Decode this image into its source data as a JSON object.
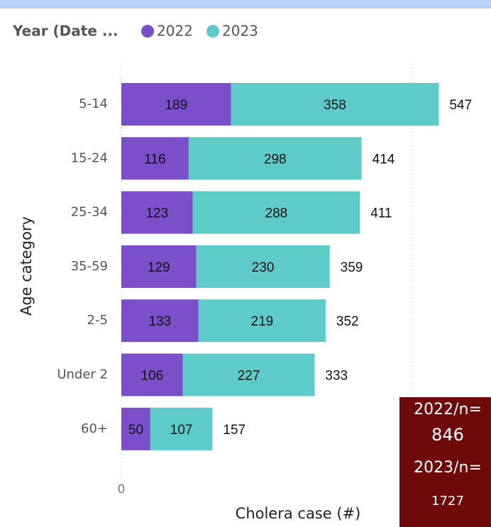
{
  "chart_data": {
    "type": "stacked-bar-horizontal",
    "legend_title": "Year (Date ...",
    "categories": [
      "5-14",
      "15-24",
      "25-34",
      "35-59",
      "2-5",
      "Under 2",
      "60+"
    ],
    "series": [
      {
        "name": "2022",
        "color": "#7b4fca",
        "values": [
          189,
          116,
          123,
          129,
          133,
          106,
          50
        ]
      },
      {
        "name": "2023",
        "color": "#5ecbc8",
        "values": [
          358,
          298,
          288,
          230,
          219,
          227,
          107
        ]
      }
    ],
    "totals": [
      547,
      414,
      411,
      359,
      352,
      333,
      157
    ],
    "xlim": [
      0,
      600
    ],
    "xticks": [
      0,
      500
    ],
    "grid": true,
    "xlabel": "Cholera case (#)",
    "ylabel": "Age category",
    "annotations": [
      "2022/n=",
      "846",
      "2023/n=",
      "1727"
    ]
  }
}
